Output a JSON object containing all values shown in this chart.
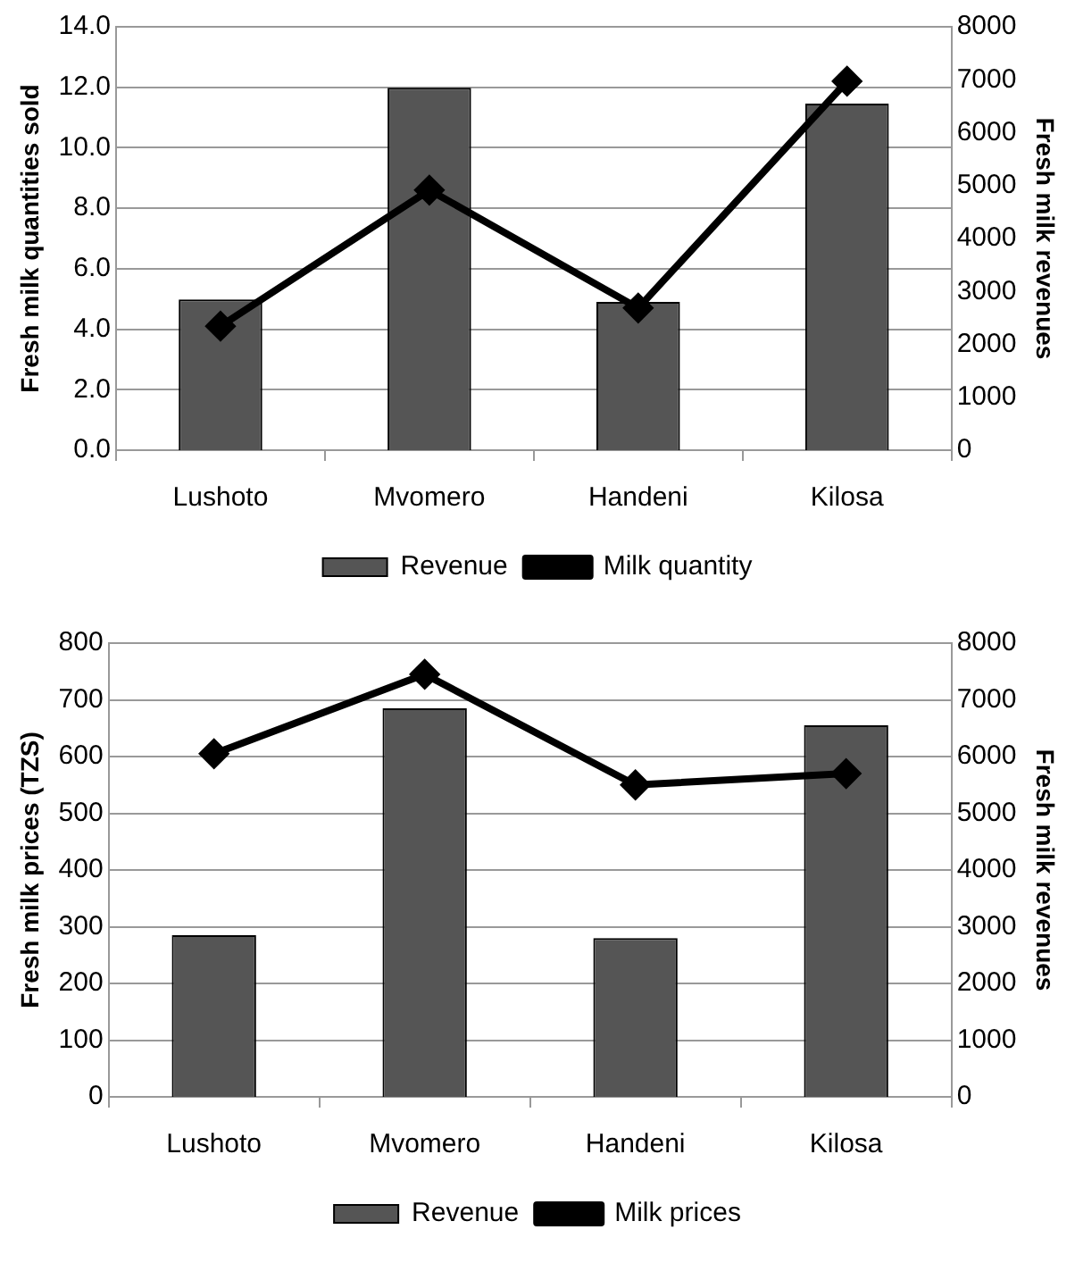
{
  "chart_data": [
    {
      "type": "bar",
      "categories": [
        "Lushoto",
        "Mvomero",
        "Handeni",
        "Kilosa"
      ],
      "ylabel": "Fresh milk quantities sold",
      "y2label": "Fresh milk revenues",
      "series": [
        {
          "name": "Revenue",
          "axis": "y2",
          "color": "#555555",
          "values": [
            2850,
            6850,
            2800,
            6550
          ]
        },
        {
          "name": "Milk quantity",
          "type": "line",
          "color": "#000000",
          "values": [
            4.1,
            8.6,
            4.7,
            12.2
          ]
        }
      ],
      "ylim": [
        0,
        14
      ],
      "yticks": [
        {
          "value": 0,
          "label": "0.0"
        },
        {
          "value": 2,
          "label": "2.0"
        },
        {
          "value": 4,
          "label": "4.0"
        },
        {
          "value": 6,
          "label": "6.0"
        },
        {
          "value": 8,
          "label": "8.0"
        },
        {
          "value": 10,
          "label": "10.0"
        },
        {
          "value": 12,
          "label": "12.0"
        },
        {
          "value": 14,
          "label": "14.0"
        }
      ],
      "y2lim": [
        0,
        8000
      ],
      "y2ticks": [
        0,
        1000,
        2000,
        3000,
        4000,
        5000,
        6000,
        7000,
        8000
      ],
      "grid": "y",
      "legend": "bottom",
      "marker": "diamond",
      "line_style": "solid"
    },
    {
      "type": "bar",
      "categories": [
        "Lushoto",
        "Mvomero",
        "Handeni",
        "Kilosa"
      ],
      "ylabel": "Fresh milk prices (TZS)",
      "y2label": "Fresh milk revenues",
      "series": [
        {
          "name": "Revenue",
          "axis": "y2",
          "color": "#555555",
          "values": [
            2850,
            6850,
            2800,
            6550
          ]
        },
        {
          "name": "Milk prices",
          "type": "line",
          "color": "#000000",
          "values": [
            605,
            745,
            550,
            570
          ]
        }
      ],
      "ylim": [
        0,
        800
      ],
      "yticks": [
        0,
        100,
        200,
        300,
        400,
        500,
        600,
        700,
        800
      ],
      "y2lim": [
        0,
        8000
      ],
      "y2ticks": [
        0,
        1000,
        2000,
        3000,
        4000,
        5000,
        6000,
        7000,
        8000
      ],
      "grid": "y",
      "legend": "bottom",
      "marker": "diamond",
      "line_style": "solid"
    }
  ]
}
